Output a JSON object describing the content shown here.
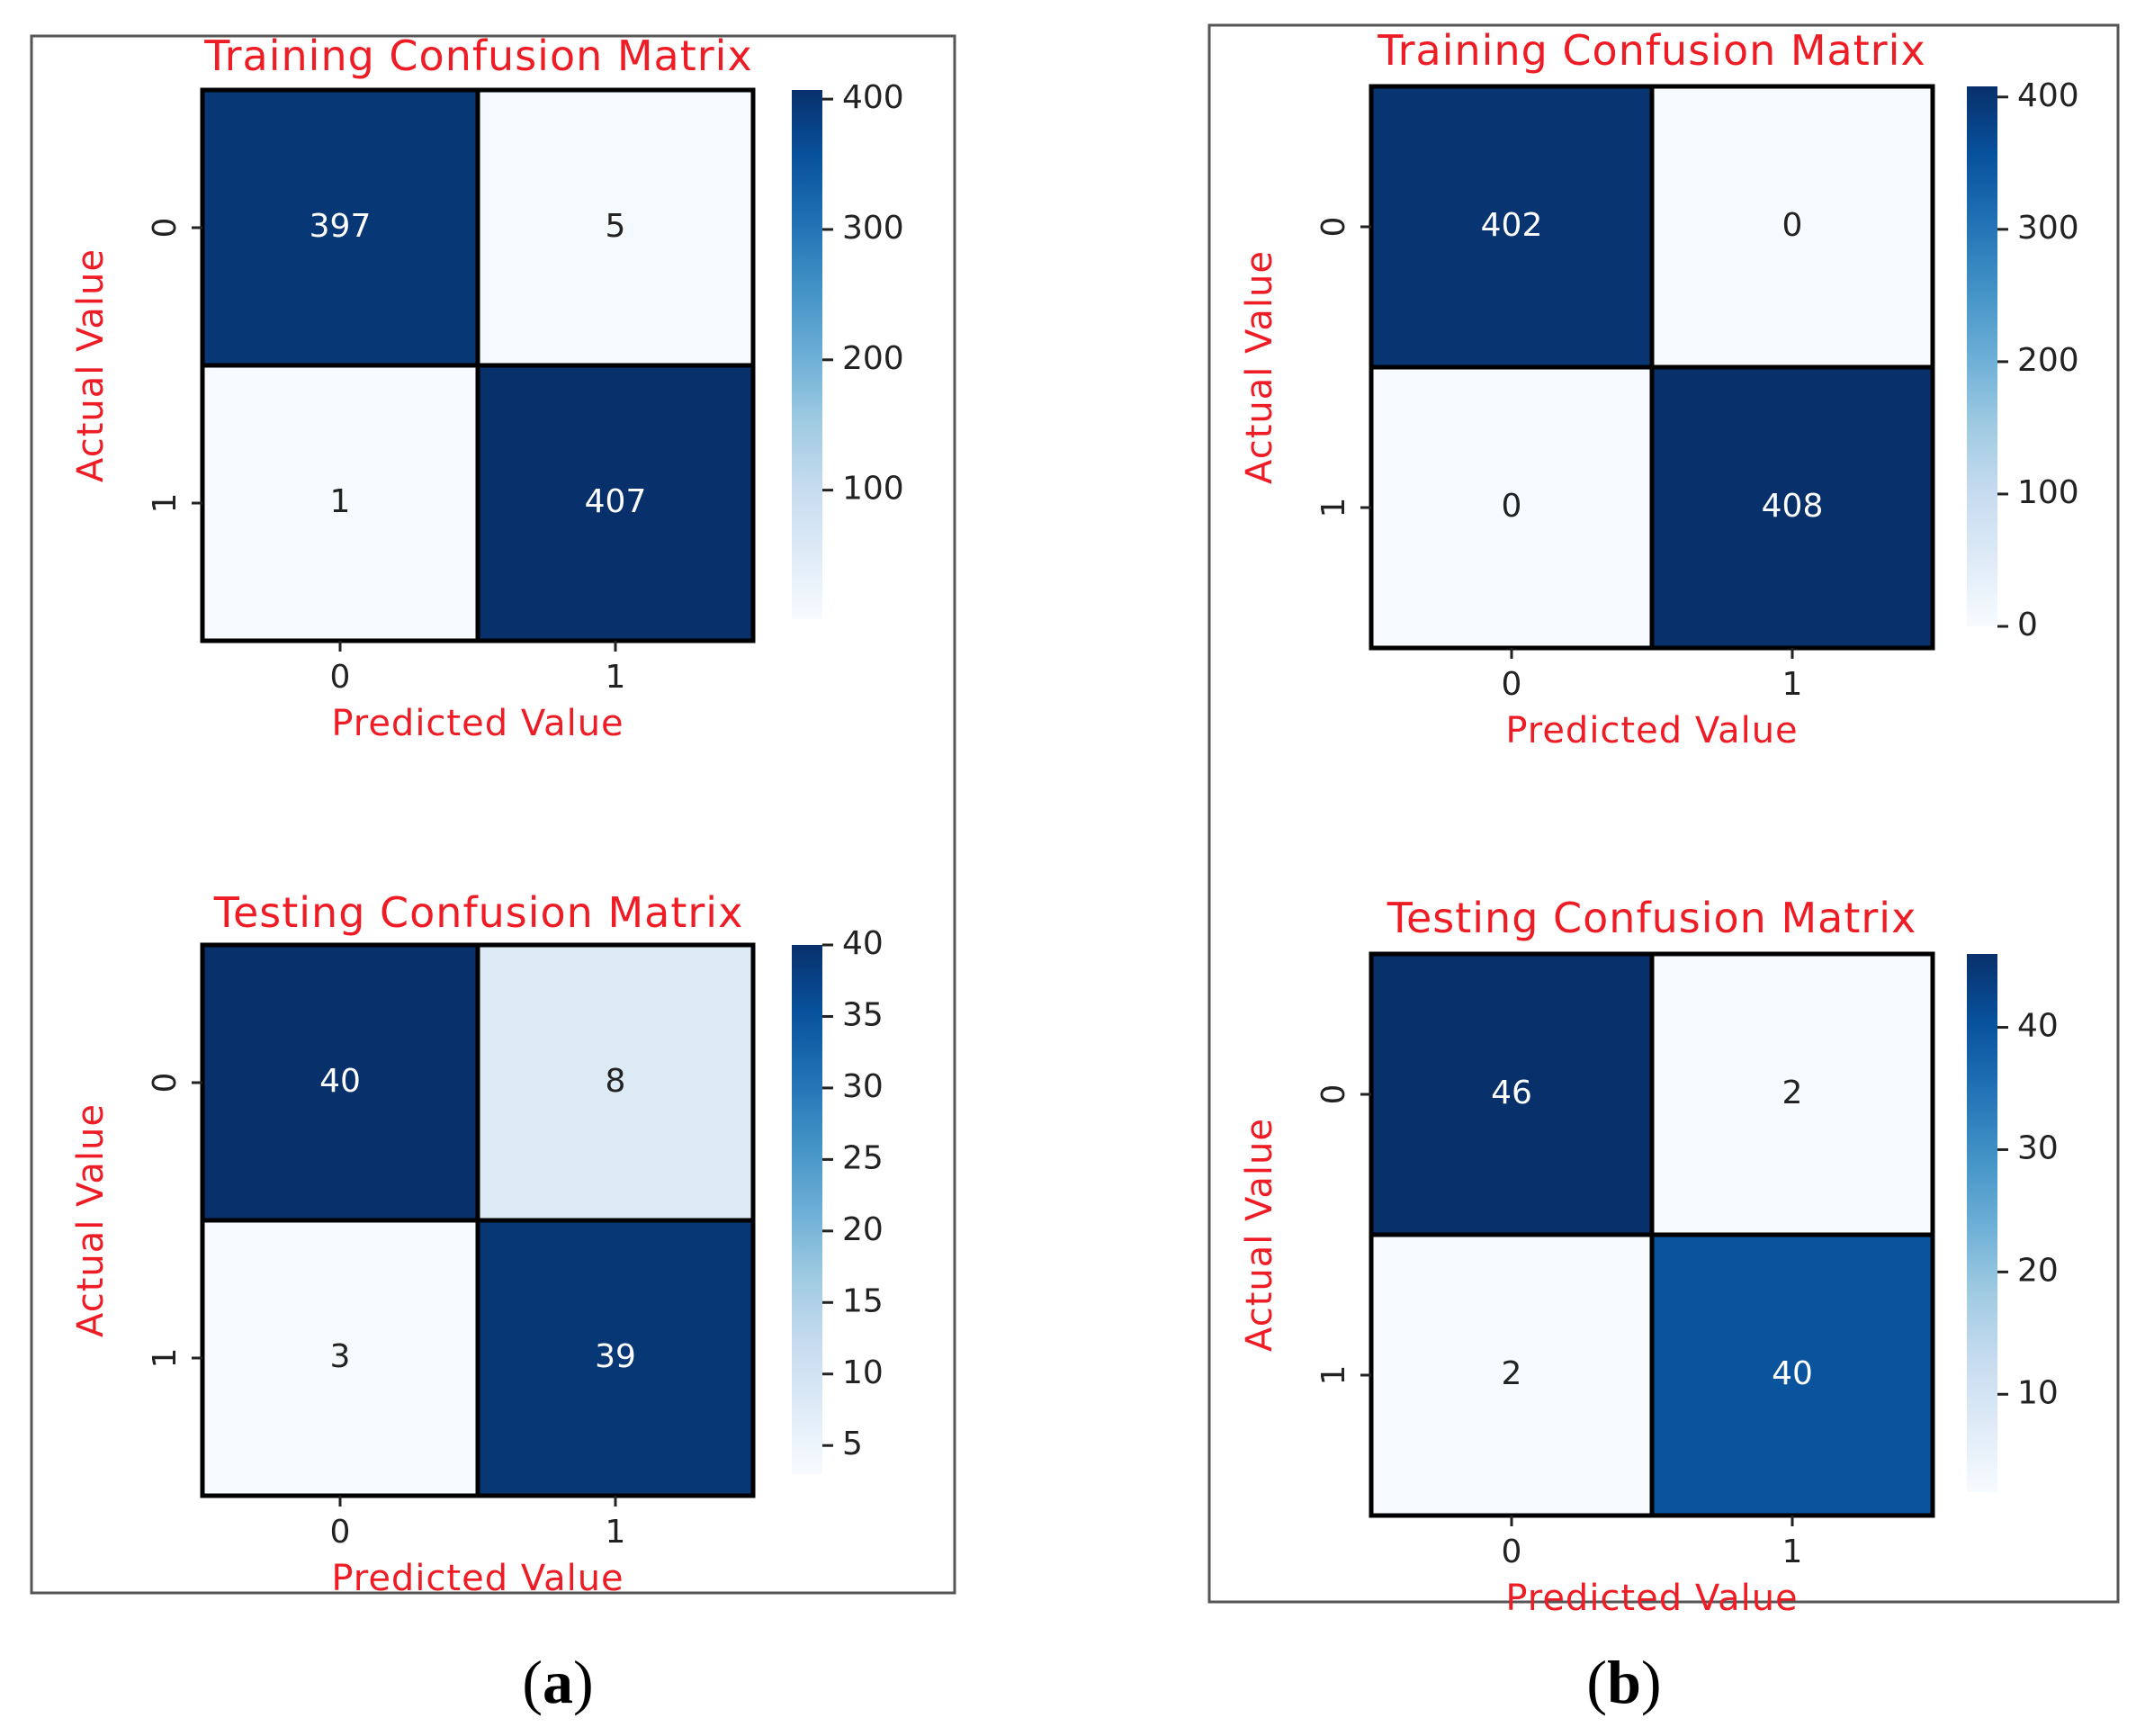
{
  "colors": {
    "label_red": "#ee1c25",
    "cmap_low": "#f7fbff",
    "cmap_mid": "#6baed6",
    "cmap_high": "#08306b"
  },
  "panels": [
    {
      "id": "a",
      "caption": "a",
      "charts": [
        {
          "title": "Training Confusion Matrix",
          "xlabel": "Predicted Value",
          "ylabel": "Actual Value",
          "x_ticks": [
            "0",
            "1"
          ],
          "y_ticks": [
            "0",
            "1"
          ]
        },
        {
          "title": "Testing Confusion Matrix",
          "xlabel": "Predicted Value",
          "ylabel": "Actual Value",
          "x_ticks": [
            "0",
            "1"
          ],
          "y_ticks": [
            "0",
            "1"
          ]
        }
      ]
    },
    {
      "id": "b",
      "caption": "b",
      "charts": [
        {
          "title": "Training Confusion Matrix",
          "xlabel": "Predicted Value",
          "ylabel": "Actual Value",
          "x_ticks": [
            "0",
            "1"
          ],
          "y_ticks": [
            "0",
            "1"
          ]
        },
        {
          "title": "Testing Confusion Matrix",
          "xlabel": "Predicted Value",
          "ylabel": "Actual Value",
          "x_ticks": [
            "0",
            "1"
          ],
          "y_ticks": [
            "0",
            "1"
          ]
        }
      ]
    }
  ],
  "chart_data": [
    {
      "type": "heatmap",
      "panel": "a",
      "title": "Training Confusion Matrix",
      "xlabel": "Predicted Value",
      "ylabel": "Actual Value",
      "x_categories": [
        "0",
        "1"
      ],
      "y_categories": [
        "0",
        "1"
      ],
      "values": [
        [
          397,
          5
        ],
        [
          1,
          407
        ]
      ],
      "colorbar_range": [
        1,
        407
      ],
      "colorbar_ticks": [
        100,
        200,
        300,
        400
      ]
    },
    {
      "type": "heatmap",
      "panel": "a",
      "title": "Testing Confusion Matrix",
      "xlabel": "Predicted Value",
      "ylabel": "Actual Value",
      "x_categories": [
        "0",
        "1"
      ],
      "y_categories": [
        "0",
        "1"
      ],
      "values": [
        [
          40,
          8
        ],
        [
          3,
          39
        ]
      ],
      "colorbar_range": [
        3,
        40
      ],
      "colorbar_ticks": [
        5,
        10,
        15,
        20,
        25,
        30,
        35,
        40
      ]
    },
    {
      "type": "heatmap",
      "panel": "b",
      "title": "Training Confusion Matrix",
      "xlabel": "Predicted Value",
      "ylabel": "Actual Value",
      "x_categories": [
        "0",
        "1"
      ],
      "y_categories": [
        "0",
        "1"
      ],
      "values": [
        [
          402,
          0
        ],
        [
          0,
          408
        ]
      ],
      "colorbar_range": [
        0,
        408
      ],
      "colorbar_ticks": [
        0,
        100,
        200,
        300,
        400
      ]
    },
    {
      "type": "heatmap",
      "panel": "b",
      "title": "Testing Confusion Matrix",
      "xlabel": "Predicted Value",
      "ylabel": "Actual Value",
      "x_categories": [
        "0",
        "1"
      ],
      "y_categories": [
        "0",
        "1"
      ],
      "values": [
        [
          46,
          2
        ],
        [
          2,
          40
        ]
      ],
      "colorbar_range": [
        2,
        46
      ],
      "colorbar_ticks": [
        10,
        20,
        30,
        40
      ]
    }
  ]
}
